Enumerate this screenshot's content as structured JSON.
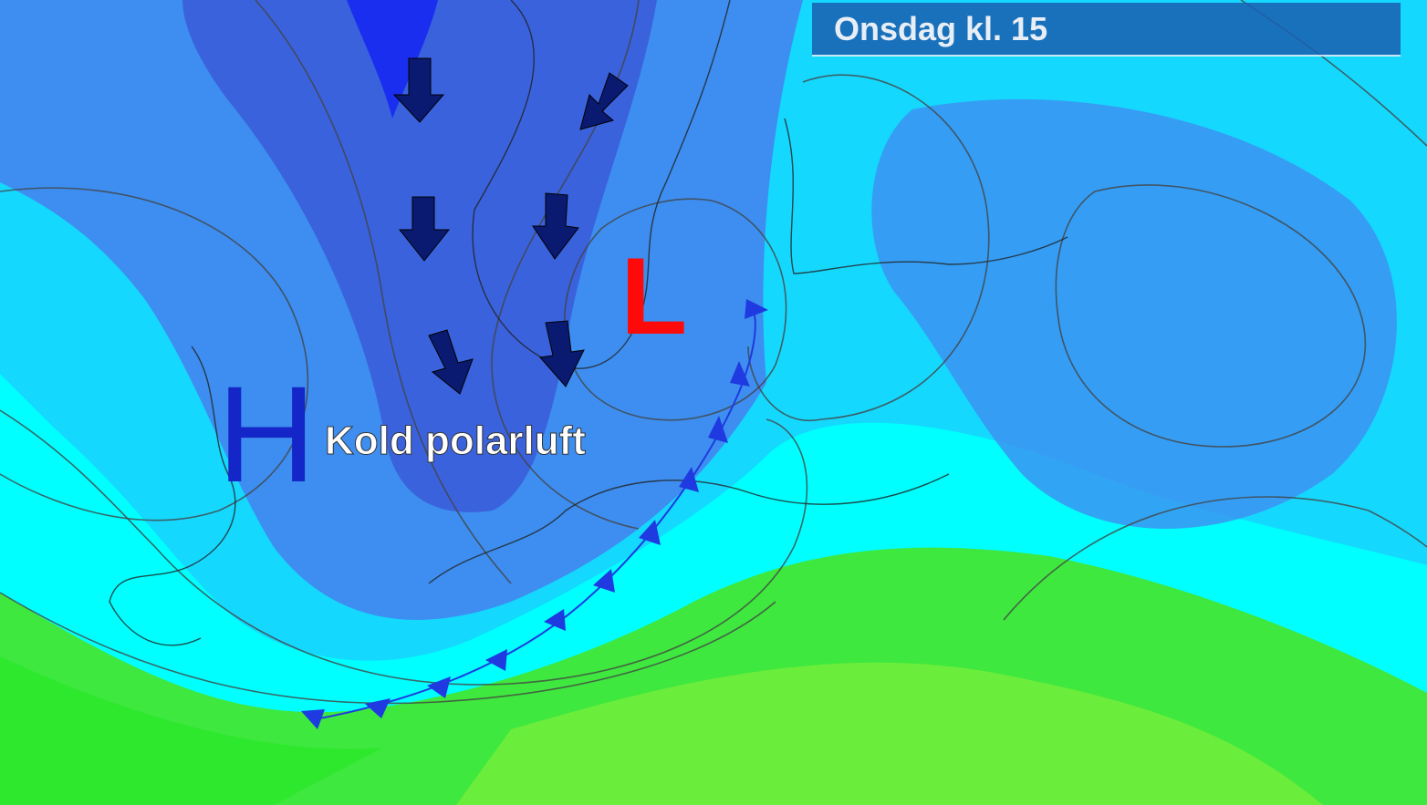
{
  "header": {
    "title": "Onsdag kl. 15"
  },
  "pressure_systems": [
    {
      "label": "H"
    },
    {
      "label": "L"
    }
  ],
  "annotations": [
    {
      "label": "Kold polarluft"
    }
  ]
}
